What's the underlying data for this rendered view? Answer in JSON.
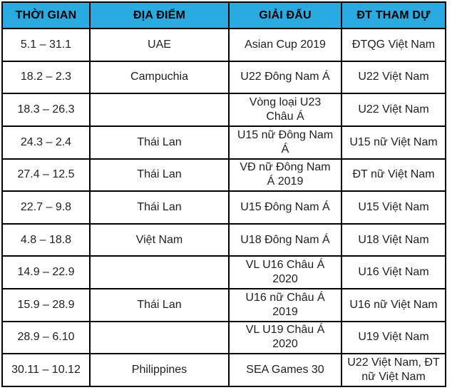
{
  "colors": {
    "header_bg": "#29ABE2",
    "border": "#000000",
    "text": "#212121",
    "header_text": "#000000"
  },
  "chart_data": {
    "type": "table",
    "columns": [
      "THỜI GIAN",
      "ĐỊA ĐIỂM",
      "GIẢI ĐẤU",
      "ĐT THAM DỰ"
    ],
    "rows": [
      [
        "5.1 – 31.1",
        "UAE",
        "Asian Cup 2019",
        "ĐTQG Việt Nam"
      ],
      [
        "18.2 – 2.3",
        "Campuchia",
        "U22 Đông Nam Á",
        "U22 Việt Nam"
      ],
      [
        "18.3 – 26.3",
        "",
        "Vòng loại U23\nChâu Á",
        "U22 Việt Nam"
      ],
      [
        "24.3 – 2.4",
        "Thái Lan",
        "U15 nữ Đông Nam\nÁ",
        "U15 nữ Việt Nam"
      ],
      [
        "27.4 – 12.5",
        "Thái Lan",
        "VĐ nữ Đông Nam\nÁ 2019",
        "ĐT nữ Việt Nam"
      ],
      [
        "22.7 – 9.8",
        "Thái Lan",
        "U15 Đông Nam Á",
        "U15 Việt Nam"
      ],
      [
        "4.8 – 18.8",
        "Việt Nam",
        "U18 Đông Nam Á",
        "U18 Việt Nam"
      ],
      [
        "14.9 – 22.9",
        "",
        "VL U16 Châu Á\n2020",
        "U16 Việt Nam"
      ],
      [
        "15.9 – 28.9",
        "Thái Lan",
        "U16 nữ Châu Á\n2019",
        "U16 nữ Việt Nam"
      ],
      [
        "28.9 – 6.10",
        "",
        "VL U19 Châu Á\n2020",
        "U19 Việt Nam"
      ],
      [
        "30.11 – 10.12",
        "Philippines",
        "SEA Games 30",
        "U22 Việt Nam, ĐT\nnữ Việt Nam"
      ]
    ],
    "column_semantic_names": [
      "thoi-gian",
      "dia-diem",
      "giai-dau",
      "dt-tham-du"
    ]
  }
}
